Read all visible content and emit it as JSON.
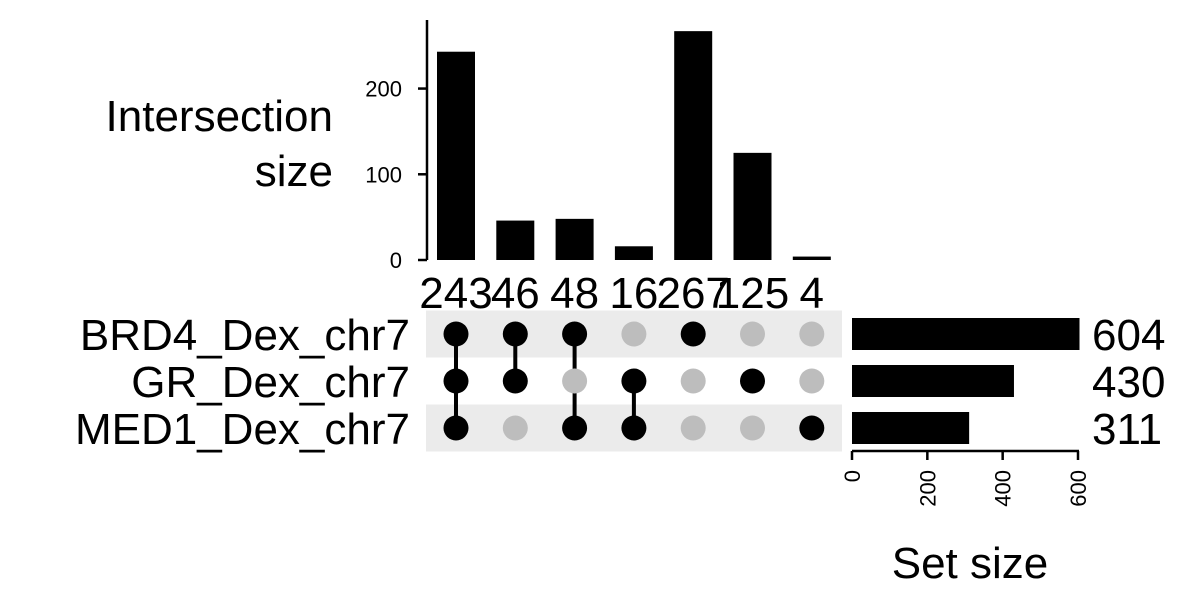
{
  "chart_data": {
    "type": "upset",
    "intersection_axis": {
      "title_lines": [
        "Intersection",
        "size"
      ],
      "ticks": [
        0,
        100,
        200
      ],
      "ylim": [
        0,
        280
      ]
    },
    "intersections": [
      {
        "sets": [
          "BRD4_Dex_chr7",
          "GR_Dex_chr7",
          "MED1_Dex_chr7"
        ],
        "size": 243
      },
      {
        "sets": [
          "BRD4_Dex_chr7",
          "GR_Dex_chr7"
        ],
        "size": 46
      },
      {
        "sets": [
          "BRD4_Dex_chr7",
          "MED1_Dex_chr7"
        ],
        "size": 48
      },
      {
        "sets": [
          "GR_Dex_chr7",
          "MED1_Dex_chr7"
        ],
        "size": 16
      },
      {
        "sets": [
          "BRD4_Dex_chr7"
        ],
        "size": 267
      },
      {
        "sets": [
          "GR_Dex_chr7"
        ],
        "size": 125
      },
      {
        "sets": [
          "MED1_Dex_chr7"
        ],
        "size": 4
      }
    ],
    "sets": [
      {
        "name": "BRD4_Dex_chr7",
        "size": 604
      },
      {
        "name": "GR_Dex_chr7",
        "size": 430
      },
      {
        "name": "MED1_Dex_chr7",
        "size": 311
      }
    ],
    "set_size_axis": {
      "title": "Set size",
      "ticks": [
        0,
        200,
        400,
        600
      ],
      "xlim": [
        0,
        600
      ]
    },
    "colors": {
      "bar": "#000000",
      "dot_active": "#000000",
      "dot_inactive": "#bdbdbd",
      "row_shade": "#ebebeb"
    }
  }
}
